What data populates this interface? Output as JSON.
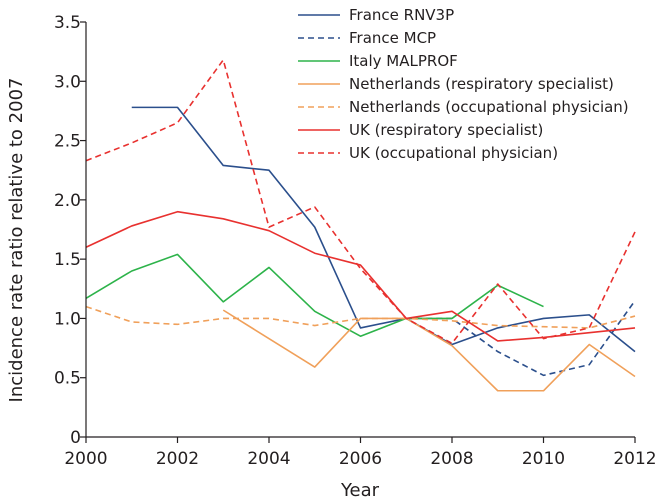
{
  "chart_data": {
    "type": "line",
    "xlabel": "Year",
    "ylabel": "Incidence rate ratio relative to 2007",
    "xlim": [
      2000,
      2012
    ],
    "ylim": [
      0,
      3.5
    ],
    "x_ticks": [
      2000,
      2002,
      2004,
      2006,
      2008,
      2010,
      2012
    ],
    "y_ticks": [
      "0",
      "0.5",
      "1.0",
      "1.5",
      "2.0",
      "2.5",
      "3.0",
      "3.5"
    ],
    "grid": false,
    "legend_position": "top-right",
    "series": [
      {
        "name": "France RNV3P",
        "color": "#2b4f8c",
        "dash": "solid",
        "points": [
          [
            2001,
            2.78
          ],
          [
            2002,
            2.78
          ],
          [
            2003,
            2.29
          ],
          [
            2004,
            2.25
          ],
          [
            2005,
            1.77
          ],
          [
            2006,
            0.92
          ],
          [
            2007,
            1.0
          ],
          [
            2008,
            0.78
          ],
          [
            2009,
            0.92
          ],
          [
            2010,
            1.0
          ],
          [
            2011,
            1.03
          ],
          [
            2012,
            0.72
          ]
        ]
      },
      {
        "name": "France MCP",
        "color": "#2b4f8c",
        "dash": "dashed",
        "points": [
          [
            2007,
            1.0
          ],
          [
            2008,
            1.0
          ],
          [
            2009,
            0.72
          ],
          [
            2010,
            0.52
          ],
          [
            2011,
            0.61
          ],
          [
            2012,
            1.15
          ]
        ]
      },
      {
        "name": "Italy MALPROF",
        "color": "#2db34a",
        "dash": "solid",
        "points": [
          [
            2000,
            1.17
          ],
          [
            2001,
            1.4
          ],
          [
            2002,
            1.54
          ],
          [
            2003,
            1.14
          ],
          [
            2004,
            1.43
          ],
          [
            2005,
            1.06
          ],
          [
            2006,
            0.85
          ],
          [
            2007,
            1.0
          ],
          [
            2008,
            1.0
          ],
          [
            2009,
            1.28
          ],
          [
            2010,
            1.1
          ]
        ]
      },
      {
        "name": "Netherlands (respiratory specialist)",
        "color": "#f0a05a",
        "dash": "solid",
        "points": [
          [
            2003,
            1.07
          ],
          [
            2005,
            0.59
          ],
          [
            2006,
            1.0
          ],
          [
            2007,
            1.0
          ],
          [
            2008,
            0.77
          ],
          [
            2009,
            0.39
          ],
          [
            2010,
            0.39
          ],
          [
            2011,
            0.78
          ],
          [
            2012,
            0.51
          ]
        ]
      },
      {
        "name": "Netherlands (occupational physician)",
        "color": "#f0a05a",
        "dash": "dashed",
        "points": [
          [
            2000,
            1.1
          ],
          [
            2001,
            0.97
          ],
          [
            2002,
            0.95
          ],
          [
            2003,
            1.0
          ],
          [
            2004,
            1.0
          ],
          [
            2005,
            0.94
          ],
          [
            2006,
            1.0
          ],
          [
            2007,
            1.0
          ],
          [
            2008,
            0.98
          ],
          [
            2009,
            0.94
          ],
          [
            2010,
            0.93
          ],
          [
            2011,
            0.92
          ],
          [
            2012,
            1.02
          ]
        ]
      },
      {
        "name": "UK (respiratory specialist)",
        "color": "#e8312f",
        "dash": "solid",
        "points": [
          [
            2000,
            1.6
          ],
          [
            2001,
            1.78
          ],
          [
            2002,
            1.9
          ],
          [
            2003,
            1.84
          ],
          [
            2004,
            1.74
          ],
          [
            2005,
            1.55
          ],
          [
            2006,
            1.45
          ],
          [
            2007,
            1.0
          ],
          [
            2008,
            1.06
          ],
          [
            2009,
            0.81
          ],
          [
            2010,
            0.84
          ],
          [
            2011,
            0.88
          ],
          [
            2012,
            0.92
          ]
        ]
      },
      {
        "name": "UK (occupational physician)",
        "color": "#e8312f",
        "dash": "dashed",
        "points": [
          [
            2000,
            2.33
          ],
          [
            2001,
            2.48
          ],
          [
            2002,
            2.65
          ],
          [
            2003,
            3.18
          ],
          [
            2004,
            1.77
          ],
          [
            2005,
            1.94
          ],
          [
            2006,
            1.42
          ],
          [
            2007,
            1.0
          ],
          [
            2008,
            0.79
          ],
          [
            2009,
            1.29
          ],
          [
            2010,
            0.83
          ],
          [
            2011,
            0.92
          ],
          [
            2012,
            1.73
          ]
        ]
      }
    ]
  }
}
